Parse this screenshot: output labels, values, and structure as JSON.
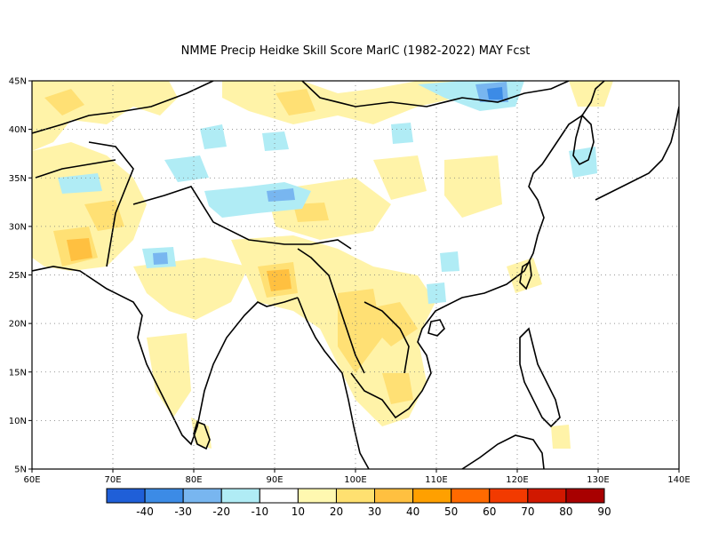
{
  "title": "NMME Precip Heidke Skill Score MarIC (1982-2022) MAY Fcst",
  "map": {
    "lon_range": [
      60,
      140
    ],
    "lat_range": [
      5,
      45
    ],
    "lon_ticks": [
      "60E",
      "70E",
      "80E",
      "90E",
      "100E",
      "110E",
      "120E",
      "130E",
      "140E"
    ],
    "lat_ticks": [
      "5N",
      "10N",
      "15N",
      "20N",
      "25N",
      "30N",
      "35N",
      "40N",
      "45N"
    ],
    "grid": "dotted"
  },
  "colorbar": {
    "colors": [
      "#1f5fd8",
      "#3c8be6",
      "#78b6f0",
      "#b0ecf5",
      "#ffffff",
      "#fff8b0",
      "#ffe070",
      "#ffc040",
      "#ffa000",
      "#ff6a00",
      "#f23a00",
      "#d11800",
      "#a80000"
    ],
    "labels": [
      "-40",
      "-30",
      "-20",
      "-10",
      "10",
      "20",
      "30",
      "40",
      "50",
      "60",
      "70",
      "80",
      "90"
    ]
  },
  "region_colors": {
    "light_yellow": "#fff3a8",
    "mid_yellow": "#ffe074",
    "orange": "#ffc040",
    "dark_orange": "#ff9e20",
    "light_cyan": "#b0ecf5",
    "light_blue": "#78b6f0",
    "mid_blue": "#3c8be6"
  }
}
